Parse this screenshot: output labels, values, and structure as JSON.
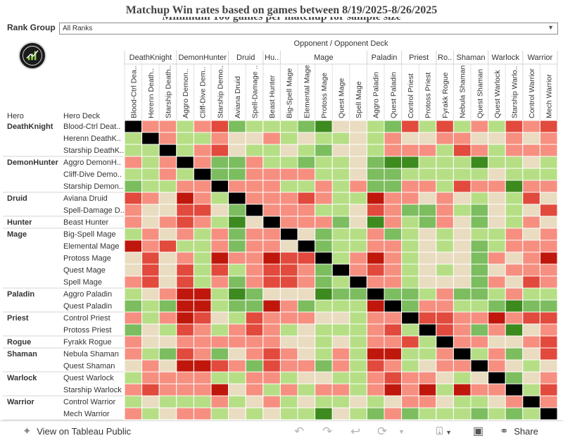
{
  "title": "Matchup Win rates based on games between 8/19/2025-8/26/2025",
  "subtitle": "Minimum 100 games per matchup for sample size",
  "filter": {
    "label": "Rank Group",
    "value": "All Ranks"
  },
  "footer": {
    "view_label": "View on Tableau Public",
    "share_label": "Share"
  },
  "chart_data": {
    "type": "heatmap",
    "x_axis_label": "Opponent  /  Opponent Deck",
    "row_header_labels": [
      "Hero",
      "Hero Deck"
    ],
    "decks": [
      {
        "hero": "DeathKnight",
        "deck": "Blood-Ctrl Deat..",
        "col": "Blood-Ctrl Dea.."
      },
      {
        "hero": "DeathKnight",
        "deck": "Herenn DeathK..",
        "col": "Herenn Death.."
      },
      {
        "hero": "DeathKnight",
        "deck": "Starship DeathK..",
        "col": "Starship Death.."
      },
      {
        "hero": "DemonHunter",
        "deck": "Aggro DemonH..",
        "col": "Aggro Demon.."
      },
      {
        "hero": "DemonHunter",
        "deck": "Cliff-Dive Demo..",
        "col": "Cliff-Dive Dem.."
      },
      {
        "hero": "DemonHunter",
        "deck": "Starship Demon..",
        "col": "Starship Demo.."
      },
      {
        "hero": "Druid",
        "deck": "Aviana Druid",
        "col": "Aviana Druid"
      },
      {
        "hero": "Druid",
        "deck": "Spell-Damage D..",
        "col": "Spell-Damage .."
      },
      {
        "hero": "Hunter",
        "deck": "Beast Hunter",
        "col": "Beast Hunter"
      },
      {
        "hero": "Mage",
        "deck": "Big-Spell Mage",
        "col": "Big-Spell Mage"
      },
      {
        "hero": "Mage",
        "deck": "Elemental Mage",
        "col": "Elemental Mage"
      },
      {
        "hero": "Mage",
        "deck": "Protoss Mage",
        "col": "Protoss Mage"
      },
      {
        "hero": "Mage",
        "deck": "Quest Mage",
        "col": "Quest Mage"
      },
      {
        "hero": "Mage",
        "deck": "Spell Mage",
        "col": "Spell Mage"
      },
      {
        "hero": "Paladin",
        "deck": "Aggro Paladin",
        "col": "Aggro Paladin"
      },
      {
        "hero": "Paladin",
        "deck": "Quest Paladin",
        "col": "Quest Paladin"
      },
      {
        "hero": "Priest",
        "deck": "Control Priest",
        "col": "Control Priest"
      },
      {
        "hero": "Priest",
        "deck": "Protoss Priest",
        "col": "Protoss Priest"
      },
      {
        "hero": "Rogue",
        "deck": "Fyrakk Rogue",
        "col": "Fyrakk Rogue"
      },
      {
        "hero": "Shaman",
        "deck": "Nebula Shaman",
        "col": "Nebula Shaman"
      },
      {
        "hero": "Shaman",
        "deck": "Quest Shaman",
        "col": "Quest Shaman"
      },
      {
        "hero": "Warlock",
        "deck": "Quest Warlock",
        "col": "Quest Warlock"
      },
      {
        "hero": "Warlock",
        "deck": "Starship Warlock",
        "col": "Starship Warlo.."
      },
      {
        "hero": "Warrior",
        "deck": "Control Warrior",
        "col": "Control Warrior"
      },
      {
        "hero": "Warrior",
        "deck": "Mech Warrior",
        "col": "Mech Warrior"
      }
    ],
    "column_groups": [
      {
        "label": "DeathKnight",
        "count": 3
      },
      {
        "label": "DemonHunter",
        "count": 3
      },
      {
        "label": "Druid",
        "count": 2
      },
      {
        "label": "Hu..",
        "count": 1
      },
      {
        "label": "Mage",
        "count": 5
      },
      {
        "label": "Paladin",
        "count": 2
      },
      {
        "label": "Priest",
        "count": 2
      },
      {
        "label": "Ro..",
        "count": 1
      },
      {
        "label": "Shaman",
        "count": 2
      },
      {
        "label": "Warlock",
        "count": 2
      },
      {
        "label": "Warrior",
        "count": 2
      }
    ],
    "value_scale": {
      "classes": [
        "X",
        "R3",
        "R2",
        "R1",
        "N",
        "G1",
        "G2",
        "G3"
      ],
      "meaning": [
        "mirror / no data",
        "strongly unfavored",
        "unfavored",
        "slightly unfavored",
        "even",
        "slightly favored",
        "favored",
        "strongly favored"
      ],
      "colors": {
        "X": "#000000",
        "R3": "#c0170c",
        "R2": "#e14a3c",
        "R1": "#f68f80",
        "N": "#e9dcc1",
        "G1": "#b6df85",
        "G2": "#7cbd5f",
        "G3": "#3d8a1e"
      }
    },
    "matrix": [
      [
        "X",
        "R1",
        "R1",
        "G1",
        "R1",
        "R2",
        "G2",
        "G1",
        "G1",
        "G1",
        "G2",
        "G3",
        "N",
        "N",
        "G1",
        "G2",
        "R2",
        "G1",
        "R2",
        "G1",
        "R1",
        "G1",
        "R2",
        "R1",
        "R2"
      ],
      [
        "G1",
        "X",
        "R1",
        "G1",
        "G1",
        "R1",
        "N",
        "N",
        "R1",
        "G1",
        "N",
        "G1",
        "G1",
        "N",
        "G1",
        "R1",
        "N",
        "N",
        "R1",
        "R1",
        "N",
        "N",
        "R1",
        "N",
        "R1"
      ],
      [
        "G1",
        "G1",
        "X",
        "G1",
        "R1",
        "R2",
        "N",
        "G1",
        "G1",
        "N",
        "G1",
        "G2",
        "N",
        "N",
        "G1",
        "R1",
        "R1",
        "R1",
        "G1",
        "R2",
        "R1",
        "G1",
        "R1",
        "R1",
        "R1"
      ],
      [
        "R1",
        "G1",
        "R1",
        "X",
        "R1",
        "G2",
        "G2",
        "R1",
        "G1",
        "G1",
        "G2",
        "G1",
        "G1",
        "N",
        "G2",
        "G3",
        "G3",
        "G1",
        "G1",
        "G1",
        "G3",
        "G1",
        "G1",
        "N",
        "G1"
      ],
      [
        "G1",
        "G1",
        "R1",
        "G1",
        "X",
        "G2",
        "G2",
        "R1",
        "R1",
        "R1",
        "R1",
        "G1",
        "G1",
        "N",
        "G2",
        "G2",
        "G1",
        "G1",
        "G1",
        "G1",
        "G1",
        "N",
        "G1",
        "G1",
        "G1"
      ],
      [
        "G2",
        "G1",
        "G1",
        "R1",
        "R1",
        "X",
        "R1",
        "R1",
        "R1",
        "G1",
        "G1",
        "R1",
        "G1",
        "R1",
        "G2",
        "G2",
        "R1",
        "R1",
        "G1",
        "R2",
        "R1",
        "R1",
        "G3",
        "R1",
        "R1"
      ],
      [
        "R2",
        "R1",
        "N",
        "R3",
        "R1",
        "G1",
        "X",
        "R1",
        "R1",
        "R1",
        "R2",
        "R1",
        "G1",
        "G1",
        "R3",
        "R1",
        "R1",
        "N",
        "R1",
        "N",
        "G1",
        "N",
        "G1",
        "R2",
        "N"
      ],
      [
        "R1",
        "N",
        "N",
        "R2",
        "R2",
        "N",
        "G2",
        "X",
        "R1",
        "R1",
        "R1",
        "G1",
        "G1",
        "N",
        "R2",
        "R1",
        "G2",
        "G2",
        "R1",
        "G1",
        "G2",
        "N",
        "G1",
        "N",
        "R2"
      ],
      [
        "R1",
        "N",
        "R1",
        "R2",
        "R1",
        "G1",
        "G3",
        "N",
        "X",
        "R1",
        "R1",
        "R1",
        "G2",
        "N",
        "G3",
        "R1",
        "G1",
        "G2",
        "R1",
        "N",
        "G2",
        "N",
        "G1",
        "R1",
        "N"
      ],
      [
        "G1",
        "R1",
        "N",
        "R1",
        "G1",
        "R1",
        "G2",
        "R1",
        "R1",
        "X",
        "N",
        "G2",
        "G1",
        "G1",
        "R1",
        "G2",
        "G1",
        "N",
        "G1",
        "N",
        "G1",
        "G1",
        "R1",
        "N",
        "R1"
      ],
      [
        "R3",
        "R1",
        "R2",
        "G1",
        "G1",
        "R1",
        "G2",
        "R1",
        "R1",
        "N",
        "X",
        "G2",
        "G1",
        "G1",
        "R1",
        "R1",
        "G1",
        "N",
        "G1",
        "N",
        "G2",
        "G1",
        "R1",
        "R1",
        "R1"
      ],
      [
        "N",
        "R2",
        "N",
        "R1",
        "G1",
        "R3",
        "R1",
        "R1",
        "R3",
        "R2",
        "R2",
        "X",
        "G1",
        "R1",
        "R3",
        "R1",
        "G1",
        "N",
        "N",
        "N",
        "G2",
        "R1",
        "N",
        "R1",
        "R3"
      ],
      [
        "N",
        "R2",
        "N",
        "R2",
        "G1",
        "R2",
        "G1",
        "R1",
        "R2",
        "R2",
        "R1",
        "G2",
        "X",
        "R1",
        "R2",
        "R1",
        "G1",
        "N",
        "G1",
        "N",
        "G2",
        "N",
        "R1",
        "R1",
        "R1"
      ],
      [
        "R1",
        "R2",
        "N",
        "R2",
        "G1",
        "R1",
        "G2",
        "R1",
        "R2",
        "R2",
        "R1",
        "G2",
        "G1",
        "X",
        "R1",
        "R1",
        "G1",
        "N",
        "N",
        "N",
        "G2",
        "R1",
        "N",
        "R2",
        "R1"
      ],
      [
        "G1",
        "N",
        "R1",
        "R3",
        "R3",
        "G1",
        "G3",
        "G2",
        "N",
        "N",
        "N",
        "G3",
        "G2",
        "G2",
        "X",
        "G2",
        "G2",
        "G1",
        "R1",
        "G2",
        "G2",
        "G1",
        "R1",
        "G1",
        "G1"
      ],
      [
        "G2",
        "G1",
        "G2",
        "R3",
        "R3",
        "G1",
        "G2",
        "G2",
        "R3",
        "R1",
        "G2",
        "G1",
        "G1",
        "G1",
        "R3",
        "X",
        "G2",
        "R1",
        "R1",
        "G1",
        "G1",
        "G2",
        "G3",
        "G2",
        "G2"
      ],
      [
        "R1",
        "G1",
        "R1",
        "R3",
        "R2",
        "N",
        "G1",
        "R2",
        "R1",
        "R1",
        "R1",
        "N",
        "N",
        "G1",
        "R1",
        "R1",
        "X",
        "R2",
        "R2",
        "R1",
        "R1",
        "R3",
        "R1",
        "R2",
        "R2"
      ],
      [
        "G2",
        "N",
        "G1",
        "R2",
        "R1",
        "G1",
        "R1",
        "R2",
        "R1",
        "G1",
        "N",
        "G1",
        "G1",
        "G1",
        "R1",
        "R2",
        "G1",
        "X",
        "R2",
        "R1",
        "G2",
        "R1",
        "G3",
        "N",
        "R1"
      ],
      [
        "R1",
        "N",
        "N",
        "R1",
        "R1",
        "R1",
        "R1",
        "R1",
        "R1",
        "N",
        "N",
        "G1",
        "N",
        "G1",
        "R1",
        "R1",
        "R2",
        "G1",
        "X",
        "R1",
        "R1",
        "N",
        "N",
        "R1",
        "R2"
      ],
      [
        "R1",
        "G1",
        "G2",
        "R2",
        "R1",
        "G2",
        "N",
        "R1",
        "R2",
        "R1",
        "N",
        "G1",
        "R1",
        "G1",
        "R3",
        "R3",
        "G1",
        "G1",
        "R1",
        "X",
        "G1",
        "R1",
        "G2",
        "N",
        "R2"
      ],
      [
        "N",
        "R1",
        "N",
        "R3",
        "R3",
        "R2",
        "R1",
        "G2",
        "R2",
        "R1",
        "R1",
        "G2",
        "R1",
        "G1",
        "R2",
        "R1",
        "G1",
        "N",
        "R1",
        "R1",
        "X",
        "R1",
        "N",
        "G1",
        "N"
      ],
      [
        "G1",
        "R1",
        "R1",
        "R1",
        "R1",
        "G1",
        "G1",
        "R1",
        "R1",
        "G1",
        "N",
        "N",
        "G1",
        "G1",
        "R1",
        "R2",
        "R1",
        "R1",
        "N",
        "G1",
        "N",
        "X",
        "G2",
        "N",
        "R1"
      ],
      [
        "R1",
        "R2",
        "R1",
        "R1",
        "R1",
        "R3",
        "N",
        "R1",
        "G1",
        "R1",
        "G1",
        "R1",
        "R1",
        "G1",
        "R1",
        "R3",
        "R1",
        "R3",
        "G1",
        "R3",
        "R1",
        "R1",
        "X",
        "G1",
        "R2"
      ],
      [
        "G1",
        "N",
        "G1",
        "G1",
        "G1",
        "R1",
        "G1",
        "N",
        "R1",
        "G1",
        "N",
        "G1",
        "G1",
        "N",
        "G1",
        "N",
        "R1",
        "R1",
        "N",
        "G1",
        "G1",
        "N",
        "R1",
        "X",
        "R1"
      ],
      [
        "R1",
        "G1",
        "N",
        "R1",
        "R1",
        "G1",
        "N",
        "G1",
        "N",
        "G1",
        "G1",
        "G3",
        "N",
        "G1",
        "G2",
        "R1",
        "G2",
        "G1",
        "G1",
        "G1",
        "G2",
        "G1",
        "G2",
        "G1",
        "X"
      ]
    ]
  }
}
